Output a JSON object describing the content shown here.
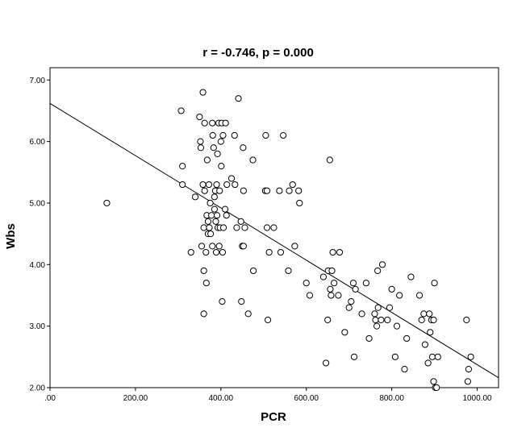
{
  "chart_data": {
    "type": "scatter",
    "title": "r = -0.746, p = 0.000",
    "xlabel": "PCR",
    "ylabel": "Wbs",
    "xlim": [
      0,
      1050
    ],
    "ylim": [
      2.0,
      7.2
    ],
    "x_ticks": [
      ".00",
      "200.00",
      "400.00",
      "600.00",
      "800.00",
      "1000.00"
    ],
    "y_ticks": [
      "2.00",
      "3.00",
      "4.00",
      "5.00",
      "6.00",
      "7.00"
    ],
    "grid": false,
    "legend": "none",
    "fit_line": {
      "intercept": 6.62,
      "slope": -0.004247
    },
    "marker_color": "#000000",
    "points": [
      [
        133,
        5.0
      ],
      [
        307,
        6.5
      ],
      [
        310,
        5.6
      ],
      [
        310,
        5.3
      ],
      [
        330,
        4.2
      ],
      [
        340,
        5.1
      ],
      [
        350,
        6.4
      ],
      [
        352,
        6.0
      ],
      [
        353,
        5.9
      ],
      [
        355,
        4.3
      ],
      [
        358,
        5.3
      ],
      [
        358,
        6.8
      ],
      [
        360,
        4.6
      ],
      [
        360,
        3.9
      ],
      [
        360,
        3.2
      ],
      [
        362,
        5.2
      ],
      [
        362,
        6.3
      ],
      [
        365,
        4.2
      ],
      [
        366,
        3.7
      ],
      [
        367,
        4.8
      ],
      [
        368,
        5.7
      ],
      [
        370,
        4.5
      ],
      [
        370,
        4.7
      ],
      [
        372,
        5.3
      ],
      [
        373,
        4.6
      ],
      [
        375,
        5.0
      ],
      [
        376,
        4.5
      ],
      [
        378,
        4.8
      ],
      [
        380,
        4.3
      ],
      [
        380,
        6.3
      ],
      [
        381,
        6.1
      ],
      [
        383,
        5.9
      ],
      [
        385,
        5.1
      ],
      [
        385,
        4.9
      ],
      [
        387,
        5.2
      ],
      [
        388,
        4.7
      ],
      [
        389,
        4.2
      ],
      [
        390,
        5.3
      ],
      [
        391,
        4.8
      ],
      [
        392,
        5.8
      ],
      [
        393,
        4.6
      ],
      [
        395,
        6.3
      ],
      [
        396,
        4.3
      ],
      [
        397,
        5.2
      ],
      [
        398,
        4.6
      ],
      [
        400,
        6.0
      ],
      [
        401,
        5.6
      ],
      [
        402,
        6.3
      ],
      [
        403,
        3.4
      ],
      [
        404,
        4.2
      ],
      [
        405,
        6.1
      ],
      [
        406,
        4.6
      ],
      [
        410,
        4.9
      ],
      [
        411,
        6.3
      ],
      [
        413,
        4.8
      ],
      [
        414,
        5.3
      ],
      [
        425,
        5.4
      ],
      [
        432,
        6.1
      ],
      [
        433,
        5.3
      ],
      [
        437,
        4.6
      ],
      [
        441,
        6.7
      ],
      [
        447,
        4.7
      ],
      [
        448,
        3.4
      ],
      [
        450,
        4.3
      ],
      [
        452,
        5.9
      ],
      [
        453,
        4.3
      ],
      [
        453,
        5.2
      ],
      [
        456,
        4.6
      ],
      [
        464,
        3.2
      ],
      [
        475,
        5.7
      ],
      [
        476,
        3.9
      ],
      [
        504,
        5.2
      ],
      [
        505,
        6.1
      ],
      [
        508,
        4.6
      ],
      [
        508,
        5.2
      ],
      [
        510,
        3.1
      ],
      [
        513,
        4.2
      ],
      [
        524,
        4.6
      ],
      [
        537,
        5.2
      ],
      [
        540,
        4.2
      ],
      [
        546,
        6.1
      ],
      [
        558,
        3.9
      ],
      [
        560,
        5.2
      ],
      [
        568,
        5.3
      ],
      [
        573,
        4.3
      ],
      [
        582,
        5.2
      ],
      [
        584,
        5.0
      ],
      [
        600,
        3.7
      ],
      [
        608,
        3.5
      ],
      [
        640,
        3.8
      ],
      [
        646,
        2.4
      ],
      [
        650,
        3.1
      ],
      [
        651,
        3.9
      ],
      [
        655,
        5.7
      ],
      [
        656,
        3.6
      ],
      [
        658,
        3.5
      ],
      [
        660,
        3.9
      ],
      [
        662,
        4.2
      ],
      [
        665,
        3.7
      ],
      [
        675,
        3.5
      ],
      [
        678,
        4.2
      ],
      [
        690,
        2.9
      ],
      [
        700,
        3.3
      ],
      [
        705,
        3.4
      ],
      [
        710,
        3.7
      ],
      [
        712,
        2.5
      ],
      [
        715,
        3.6
      ],
      [
        730,
        3.2
      ],
      [
        740,
        3.7
      ],
      [
        747,
        2.8
      ],
      [
        760,
        3.2
      ],
      [
        762,
        3.1
      ],
      [
        765,
        3.0
      ],
      [
        767,
        3.9
      ],
      [
        768,
        3.3
      ],
      [
        775,
        3.1
      ],
      [
        778,
        4.0
      ],
      [
        790,
        3.1
      ],
      [
        795,
        3.3
      ],
      [
        800,
        3.6
      ],
      [
        808,
        2.5
      ],
      [
        812,
        3.0
      ],
      [
        818,
        3.5
      ],
      [
        830,
        2.3
      ],
      [
        835,
        2.8
      ],
      [
        845,
        3.8
      ],
      [
        865,
        3.5
      ],
      [
        870,
        3.1
      ],
      [
        875,
        3.2
      ],
      [
        878,
        2.7
      ],
      [
        885,
        2.4
      ],
      [
        888,
        3.2
      ],
      [
        890,
        2.9
      ],
      [
        893,
        3.1
      ],
      [
        895,
        2.5
      ],
      [
        898,
        3.1
      ],
      [
        900,
        3.7
      ],
      [
        902,
        2.0
      ],
      [
        908,
        2.5
      ],
      [
        975,
        3.1
      ],
      [
        978,
        2.1
      ],
      [
        980,
        2.3
      ],
      [
        985,
        2.5
      ],
      [
        898,
        2.1
      ],
      [
        905,
        2.0
      ]
    ]
  }
}
